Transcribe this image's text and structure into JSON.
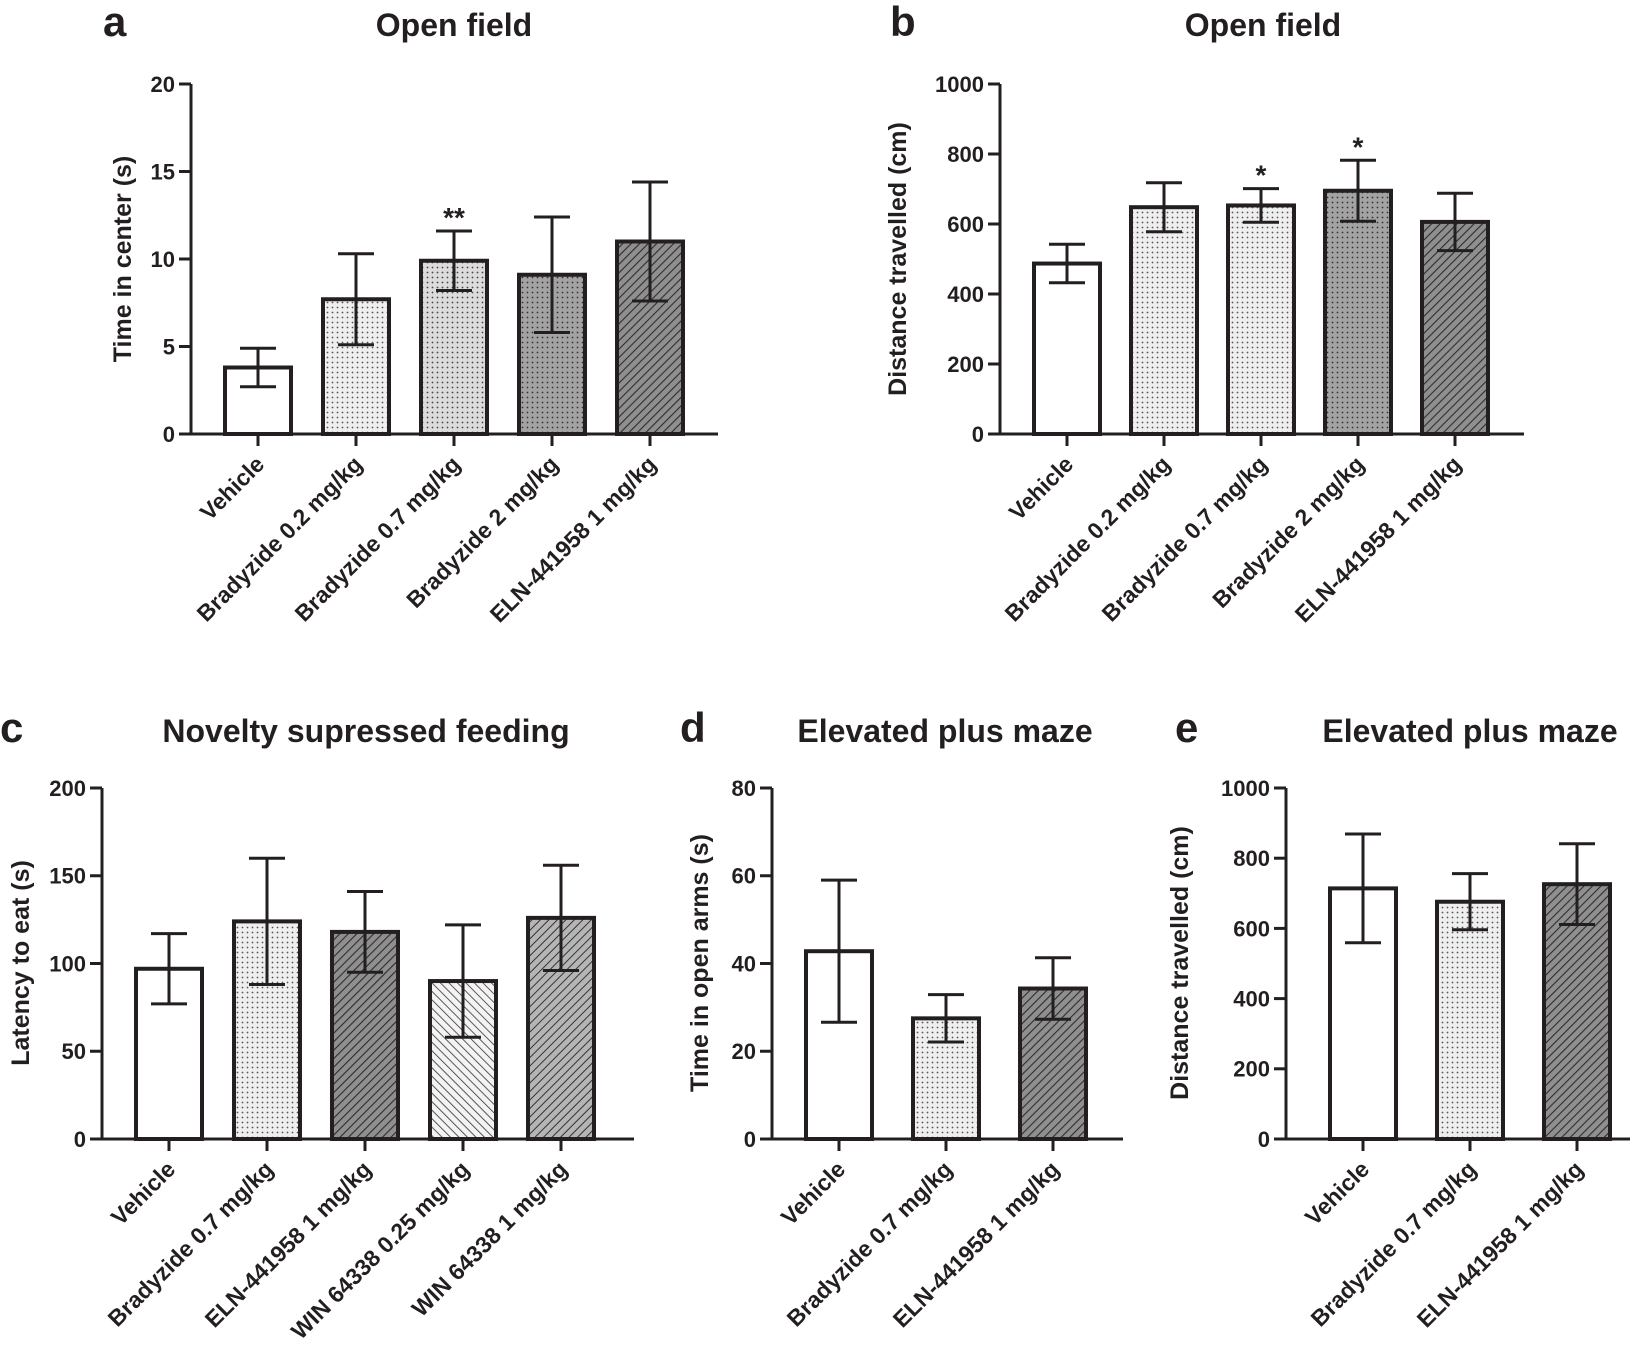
{
  "chart_data": [
    {
      "panel": "a",
      "type": "bar",
      "title": "Open field",
      "ylabel": "Time in center (s)",
      "xlabel": "",
      "ylim": [
        0,
        20
      ],
      "yticks": [
        0,
        5,
        10,
        15,
        20
      ],
      "categories": [
        "Vehicle",
        "Bradyzide 0.2 mg/kg",
        "Bradyzide 0.7 mg/kg",
        "Bradyzide 2 mg/kg",
        "ELN-441958 1 mg/kg"
      ],
      "values": [
        3.8,
        7.7,
        9.9,
        9.1,
        11.0
      ],
      "error": [
        1.1,
        2.6,
        1.7,
        3.3,
        3.4
      ],
      "significance": [
        "",
        "",
        "**",
        "",
        ""
      ],
      "fills": [
        "blank",
        "dots-light",
        "dots-mid",
        "dots-dark",
        "hatch-dark"
      ]
    },
    {
      "panel": "b",
      "type": "bar",
      "title": "Open field",
      "ylabel": "Distance travelled (cm)",
      "xlabel": "",
      "ylim": [
        0,
        1000
      ],
      "yticks": [
        0,
        200,
        400,
        600,
        800,
        1000
      ],
      "categories": [
        "Vehicle",
        "Bradyzide 0.2 mg/kg",
        "Bradyzide 0.7 mg/kg",
        "Bradyzide 2 mg/kg",
        "ELN-441958 1 mg/kg"
      ],
      "values": [
        487,
        648,
        653,
        695,
        606
      ],
      "error": [
        55,
        70,
        48,
        87,
        82
      ],
      "significance": [
        "",
        "",
        "*",
        "*",
        ""
      ],
      "fills": [
        "blank",
        "dots-light",
        "dots-light",
        "dots-dark",
        "hatch-dark"
      ]
    },
    {
      "panel": "c",
      "type": "bar",
      "title": "Novelty supressed feeding",
      "ylabel": "Latency to eat (s)",
      "xlabel": "",
      "ylim": [
        0,
        200
      ],
      "yticks": [
        0,
        50,
        100,
        150,
        200
      ],
      "categories": [
        "Vehicle",
        "Bradyzide 0.7 mg/kg",
        "ELN-441958 1 mg/kg",
        "WIN 64338 0.25 mg/kg",
        "WIN 64338 1 mg/kg"
      ],
      "values": [
        97,
        124,
        118,
        90,
        126
      ],
      "error": [
        20,
        36,
        23,
        32,
        30
      ],
      "significance": [
        "",
        "",
        "",
        "",
        ""
      ],
      "fills": [
        "blank",
        "dots-light",
        "hatch-dark",
        "hatch-light-back",
        "hatch-mid"
      ]
    },
    {
      "panel": "d",
      "type": "bar",
      "title": "Elevated plus maze",
      "ylabel": "Time in open arms (s)",
      "xlabel": "",
      "ylim": [
        0,
        80
      ],
      "yticks": [
        0,
        20,
        40,
        60,
        80
      ],
      "categories": [
        "Vehicle",
        "Bradyzide 0.7 mg/kg",
        "ELN-441958 1 mg/kg"
      ],
      "values": [
        42.8,
        27.5,
        34.3
      ],
      "error": [
        16.2,
        5.4,
        7.0
      ],
      "significance": [
        "",
        "",
        ""
      ],
      "fills": [
        "blank",
        "dots-light",
        "hatch-dark"
      ]
    },
    {
      "panel": "e",
      "type": "bar",
      "title": "Elevated plus maze",
      "ylabel": "Distance travelled (cm)",
      "xlabel": "",
      "ylim": [
        0,
        1000
      ],
      "yticks": [
        0,
        200,
        400,
        600,
        800,
        1000
      ],
      "categories": [
        "Vehicle",
        "Bradyzide 0.7 mg/kg",
        "ELN-441958 1 mg/kg"
      ],
      "values": [
        714,
        676,
        726
      ],
      "error": [
        155,
        80,
        115
      ],
      "significance": [
        "",
        "",
        ""
      ],
      "fills": [
        "blank",
        "dots-light",
        "hatch-dark"
      ]
    }
  ]
}
